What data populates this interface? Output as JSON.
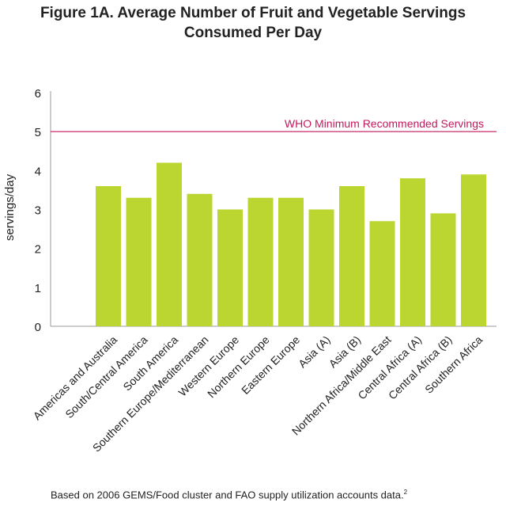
{
  "chart_data": {
    "type": "bar",
    "title_line1": "Figure 1A. Average Number of Fruit and Vegetable Servings",
    "title_line2": "Consumed Per Day",
    "ylabel": "servings/day",
    "xlabel": "",
    "ylim": [
      0,
      6
    ],
    "yticks": [
      "0",
      "1",
      "2",
      "3",
      "4",
      "5",
      "6"
    ],
    "grid": false,
    "categories": [
      "Americas and Australia",
      "South/Central America",
      "South America",
      "Southern Europe/Mediterranean",
      "Western Europe",
      "Northern Europe",
      "Eastern Europe",
      "Asia (A)",
      "Asia (B)",
      "Northern Africa/Middle East",
      "Central Africa (A)",
      "Central Africa (B)",
      "Southern Africa"
    ],
    "values": [
      3.6,
      3.3,
      4.2,
      3.4,
      3.0,
      3.3,
      3.3,
      3.0,
      3.6,
      2.7,
      3.8,
      2.9,
      3.9
    ],
    "reference_line": {
      "value": 5,
      "label": "WHO Minimum Recommended Servings",
      "color": "#c2185b"
    },
    "bar_color": "#bcd631",
    "footnote": "Based on 2006 GEMS/Food cluster and FAO supply utilization accounts data.",
    "footnote_ref": "2"
  }
}
